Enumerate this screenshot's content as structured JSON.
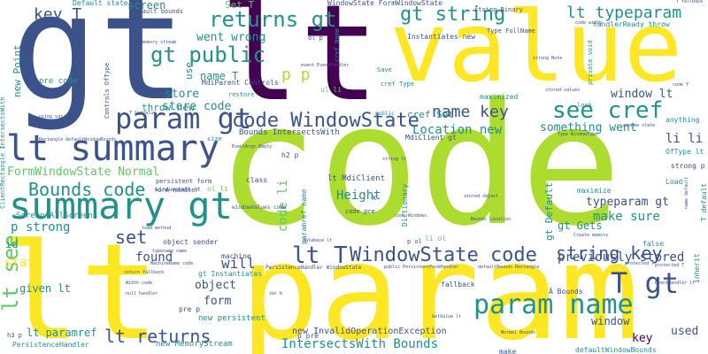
{
  "palette": {
    "dark_purple": "#440154",
    "indigo": "#3b528b",
    "teal": "#21918c",
    "green": "#5ec962",
    "lime": "#addc30",
    "yellow": "#fde725"
  },
  "words": [
    {
      "text": "code",
      "color": "#addc30",
      "weight": 100
    },
    {
      "text": "lt param",
      "color": "#fde725",
      "weight": 90
    },
    {
      "text": "gt",
      "color": "#3b528b",
      "weight": 88
    },
    {
      "text": "lt",
      "color": "#440154",
      "weight": 84
    },
    {
      "text": "value",
      "color": "#fde725",
      "weight": 60
    },
    {
      "text": "summary gt",
      "color": "#21918c",
      "weight": 40
    },
    {
      "text": "lt summary",
      "color": "#3b528b",
      "weight": 38
    },
    {
      "text": "param gt",
      "color": "#3b528b",
      "weight": 32
    },
    {
      "text": "param name",
      "color": "#21918c",
      "weight": 30
    },
    {
      "text": "T gt",
      "color": "#3b528b",
      "weight": 30
    },
    {
      "text": "see cref",
      "color": "#21918c",
      "weight": 26
    },
    {
      "text": "lt T",
      "color": "#3b528b",
      "weight": 24
    },
    {
      "text": "WindowState code",
      "color": "#3b528b",
      "weight": 24
    },
    {
      "text": "lt see",
      "color": "#5ec962",
      "weight": 22
    },
    {
      "text": "returns gt",
      "color": "#21918c",
      "weight": 22
    },
    {
      "text": "gt public",
      "color": "#21918c",
      "weight": 22
    },
    {
      "text": "gt string",
      "color": "#21918c",
      "weight": 22
    },
    {
      "text": "code WindowState",
      "color": "#3b528b",
      "weight": 22
    },
    {
      "text": "Bounds code",
      "color": "#21918c",
      "weight": 20
    },
    {
      "text": "string key",
      "color": "#3b528b",
      "weight": 20
    },
    {
      "text": "lt typeparam",
      "color": "#21918c",
      "weight": 18
    },
    {
      "text": "name key",
      "color": "#3b528b",
      "weight": 18
    },
    {
      "text": "lt returns",
      "color": "#3b528b",
      "weight": 18
    },
    {
      "text": "key T",
      "color": "#3b528b",
      "weight": 16
    },
    {
      "text": "set",
      "color": "#3b528b",
      "weight": 16
    },
    {
      "text": "p p",
      "color": "#addc30",
      "weight": 16
    },
    {
      "text": "IntersectsWith Bounds",
      "color": "#21918c",
      "weight": 14
    },
    {
      "text": "previously stored",
      "color": "#3b528b",
      "weight": 14
    },
    {
      "text": "Location new",
      "color": "#21918c",
      "weight": 14
    },
    {
      "text": "FormWindowState Normal",
      "color": "#5ec962",
      "weight": 13
    },
    {
      "text": "typeparam gt",
      "color": "#3b528b",
      "weight": 13
    },
    {
      "text": "Height",
      "color": "#21918c",
      "weight": 13
    },
    {
      "text": "will",
      "color": "#3b528b",
      "weight": 13
    },
    {
      "text": "p strong",
      "color": "#21918c",
      "weight": 13
    },
    {
      "text": "make sure",
      "color": "#21918c",
      "weight": 13
    },
    {
      "text": "li li",
      "color": "#3b528b",
      "weight": 13
    },
    {
      "text": "something went",
      "color": "#21918c",
      "weight": 13
    },
    {
      "text": "window lt",
      "color": "#3b528b",
      "weight": 13
    },
    {
      "text": "went wrong",
      "color": "#21918c",
      "weight": 13
    },
    {
      "text": "store code",
      "color": "#21918c",
      "weight": 13
    },
    {
      "text": "Binary",
      "color": "#fde725",
      "weight": 10
    },
    {
      "text": "code li",
      "color": "#5ec962",
      "weight": 12
    },
    {
      "text": "state",
      "color": "#fde725",
      "weight": 12
    },
    {
      "text": "found",
      "color": "#3b528b",
      "weight": 12
    },
    {
      "text": "object",
      "color": "#3b528b",
      "weight": 12
    },
    {
      "text": "form",
      "color": "#3b528b",
      "weight": 12
    },
    {
      "text": "used",
      "color": "#3b528b",
      "weight": 12
    },
    {
      "text": "key",
      "color": "#440154",
      "weight": 12
    },
    {
      "text": "store",
      "color": "#21918c",
      "weight": 12
    },
    {
      "text": "given lt",
      "color": "#21918c",
      "weight": 11
    },
    {
      "text": "lt paramref",
      "color": "#21918c",
      "weight": 11
    },
    {
      "text": "gt Gets",
      "color": "#21918c",
      "weight": 11
    },
    {
      "text": "screen",
      "color": "#21918c",
      "weight": 11
    },
    {
      "text": "name T",
      "color": "#21918c",
      "weight": 11
    },
    {
      "text": "throw new",
      "color": "#21918c",
      "weight": 11
    },
    {
      "text": "cref Set",
      "color": "#21918c",
      "weight": 10
    },
    {
      "text": "gt Default",
      "color": "#21918c",
      "weight": 10
    },
    {
      "text": "Set T",
      "color": "#5ec962",
      "weight": 10
    },
    {
      "text": "new Point",
      "color": "#21918c",
      "weight": 10
    },
    {
      "text": "id",
      "color": "#21918c",
      "weight": 10
    },
    {
      "text": "use",
      "color": "#21918c",
      "weight": 9
    },
    {
      "text": "window",
      "color": "#3b528b",
      "weight": 10
    },
    {
      "text": "pre code",
      "color": "#21918c",
      "weight": 8
    },
    {
      "text": "new InvalidOperationException",
      "color": "#3b528b",
      "weight": 8
    },
    {
      "text": "Bounds IntersectsWith",
      "color": "#3b528b",
      "weight": 8
    },
    {
      "text": "lt MdiClient",
      "color": "#3b528b",
      "weight": 8
    },
    {
      "text": "Screen AllScreens",
      "color": "#21918c",
      "weight": 8
    },
    {
      "text": "new MemoryStream",
      "color": "#21918c",
      "weight": 8
    },
    {
      "text": "new persistent",
      "color": "#21918c",
      "weight": 8
    },
    {
      "text": "PersistenceHandler",
      "color": "#21918c",
      "weight": 7
    },
    {
      "text": "WindowState FormWindowState",
      "color": "#3b528b",
      "weight": 7
    },
    {
      "text": "MdiParent Controls",
      "color": "#3b528b",
      "weight": 7
    },
    {
      "text": "Instantiates new",
      "color": "#3b528b",
      "weight": 7
    },
    {
      "text": "handlerReady throw",
      "color": "#21918c",
      "weight": 7
    },
    {
      "text": "defaultWindowBounds",
      "color": "#21918c",
      "weight": 7
    },
    {
      "text": "Default state",
      "color": "#21918c",
      "weight": 7
    },
    {
      "text": "Default bounds",
      "color": "#3b528b",
      "weight": 6
    },
    {
      "text": "object sender",
      "color": "#3b528b",
      "weight": 7
    },
    {
      "text": "gt Instantiates",
      "color": "#21918c",
      "weight": 7
    },
    {
      "text": "maximize",
      "color": "#21918c",
      "weight": 6
    },
    {
      "text": "maximized",
      "color": "#21918c",
      "weight": 6
    },
    {
      "text": "Load",
      "color": "#21918c",
      "weight": 6
    },
    {
      "text": "false",
      "color": "#21918c",
      "weight": 6
    },
    {
      "text": "anything",
      "color": "#21918c",
      "weight": 6
    },
    {
      "text": "MdiClient gt",
      "color": "#3b528b",
      "weight": 6
    },
    {
      "text": "ol li",
      "color": "#5ec962",
      "weight": 6
    },
    {
      "text": "ul li",
      "color": "#5ec962",
      "weight": 6
    },
    {
      "text": "li ol",
      "color": "#5ec962",
      "weight": 6
    },
    {
      "text": "h2 p",
      "color": "#3b528b",
      "weight": 6
    },
    {
      "text": "pre p",
      "color": "#3b528b",
      "weight": 6
    },
    {
      "text": "p pre",
      "color": "#3b528b",
      "weight": 6
    },
    {
      "text": "class",
      "color": "#3b528b",
      "weight": 6
    },
    {
      "text": "machine",
      "color": "#3b528b",
      "weight": 6
    },
    {
      "text": "fallback",
      "color": "#3b528b",
      "weight": 6
    },
    {
      "text": "strong p",
      "color": "#3b528b",
      "weight": 6
    },
    {
      "text": "OfType lt",
      "color": "#21918c",
      "weight": 6
    },
    {
      "text": "Dictionary",
      "color": "#21918c",
      "weight": 6
    },
    {
      "text": "size",
      "color": "#21918c",
      "weight": 5
    },
    {
      "text": "restore",
      "color": "#21918c",
      "weight": 5
    },
    {
      "text": "Save",
      "color": "#21918c",
      "weight": 5
    },
    {
      "text": "Â Bounds",
      "color": "#3b528b",
      "weight": 6
    },
    {
      "text": "form handler",
      "color": "#3b528b",
      "weight": 5
    },
    {
      "text": "persistent form",
      "color": "#3b528b",
      "weight": 5
    },
    {
      "text": "cref Type",
      "color": "#21918c",
      "weight": 5
    },
    {
      "text": "Type FullName",
      "color": "#3b528b",
      "weight": 5
    },
    {
      "text": "string Binary",
      "color": "#3b528b",
      "weight": 5
    },
    {
      "text": "windowstate lt",
      "color": "#3b528b",
      "weight": 5
    },
    {
      "text": "PersistenceHandler WindowState",
      "color": "#3b528b",
      "weight": 5
    },
    {
      "text": "public",
      "color": "#21918c",
      "weight": 5
    },
    {
      "text": "look",
      "color": "#21918c",
      "weight": 5
    },
    {
      "text": "private void",
      "color": "#21918c",
      "weight": 5
    },
    {
      "text": "cref Name",
      "color": "#21918c",
      "weight": 5
    },
    {
      "text": "paramref name",
      "color": "#21918c",
      "weight": 6
    },
    {
      "text": "code pre",
      "color": "#3b528b",
      "weight": 5
    },
    {
      "text": "ClientRectangle IntersectsWith",
      "color": "#21918c",
      "weight": 5
    },
    {
      "text": "Controls OfType",
      "color": "#3b528b",
      "weight": 5
    },
    {
      "text": "ol p",
      "color": "#3b528b",
      "weight": 5
    },
    {
      "text": "p ol",
      "color": "#3b528b",
      "weight": 5
    },
    {
      "text": "h3 p",
      "color": "#3b528b",
      "weight": 5
    },
    {
      "text": "windowValues code",
      "color": "#3b528b",
      "weight": 5
    },
    {
      "text": "protected T",
      "color": "#3b528b",
      "weight": 4
    },
    {
      "text": "T GetValue",
      "color": "#3b528b",
      "weight": 4
    },
    {
      "text": "memory stream",
      "color": "#3b528b",
      "weight": 4
    },
    {
      "text": "event EventHandler",
      "color": "#3b528b",
      "weight": 4
    },
    {
      "text": "strong Note",
      "color": "#3b528b",
      "weight": 4
    },
    {
      "text": "Rectangle defaultWindowBounds",
      "color": "#3b528b",
      "weight": 4
    },
    {
      "text": "typename name",
      "color": "#3b528b",
      "weight": 4
    },
    {
      "text": "MachineName code",
      "color": "#3b528b",
      "weight": 4
    },
    {
      "text": "return fallback",
      "color": "#3b528b",
      "weight": 4
    },
    {
      "text": "null handler",
      "color": "#3b528b",
      "weight": 4
    },
    {
      "text": "Width code",
      "color": "#3b528b",
      "weight": 4
    },
    {
      "text": "stored object",
      "color": "#3b528b",
      "weight": 4
    },
    {
      "text": "stored values",
      "color": "#3b528b",
      "weight": 4
    },
    {
      "text": "Bounds Location",
      "color": "#3b528b",
      "weight": 4
    },
    {
      "text": "database lt",
      "color": "#3b528b",
      "weight": 4
    },
    {
      "text": "code Y",
      "color": "#3b528b",
      "weight": 4
    },
    {
      "text": "T fallback",
      "color": "#3b528b",
      "weight": 4
    },
    {
      "text": "using var",
      "color": "#3b528b",
      "weight": 4
    },
    {
      "text": "code Windows",
      "color": "#3b528b",
      "weight": 4
    },
    {
      "text": "code width",
      "color": "#3b528b",
      "weight": 4
    },
    {
      "text": "window state",
      "color": "#3b528b",
      "weight": 4
    },
    {
      "text": "Create memory",
      "color": "#3b528b",
      "weight": 4
    },
    {
      "text": "var b",
      "color": "#3b528b",
      "weight": 4
    },
    {
      "text": "EventArgs Empty",
      "color": "#3b528b",
      "weight": 4
    },
    {
      "text": "load method",
      "color": "#3b528b",
      "weight": 4
    },
    {
      "text": "make",
      "color": "#3b528b",
      "weight": 5
    },
    {
      "text": "x",
      "color": "#3b528b",
      "weight": 5
    },
    {
      "text": "public PersistentFormHandler",
      "color": "#3b528b",
      "weight": 4
    },
    {
      "text": "defaultBounds Rectangle",
      "color": "#3b528b",
      "weight": 4
    },
    {
      "text": "protected T",
      "color": "#3b528b",
      "weight": 4
    },
    {
      "text": "inherit",
      "color": "#21918c",
      "weight": 5
    },
    {
      "text": "T default",
      "color": "#21918c",
      "weight": 5
    },
    {
      "text": "string lt",
      "color": "#3b528b",
      "weight": 4
    },
    {
      "text": "name default",
      "color": "#3b528b",
      "weight": 4
    },
    {
      "text": "Type WindowType",
      "color": "#3b528b",
      "weight": 4
    },
    {
      "text": "Normal Bounds",
      "color": "#3b528b",
      "weight": 4
    },
    {
      "text": "GetValue lt",
      "color": "#3b528b",
      "weight": 4
    },
    {
      "text": "EventHandler lt",
      "color": "#3b528b",
      "weight": 4
    }
  ]
}
